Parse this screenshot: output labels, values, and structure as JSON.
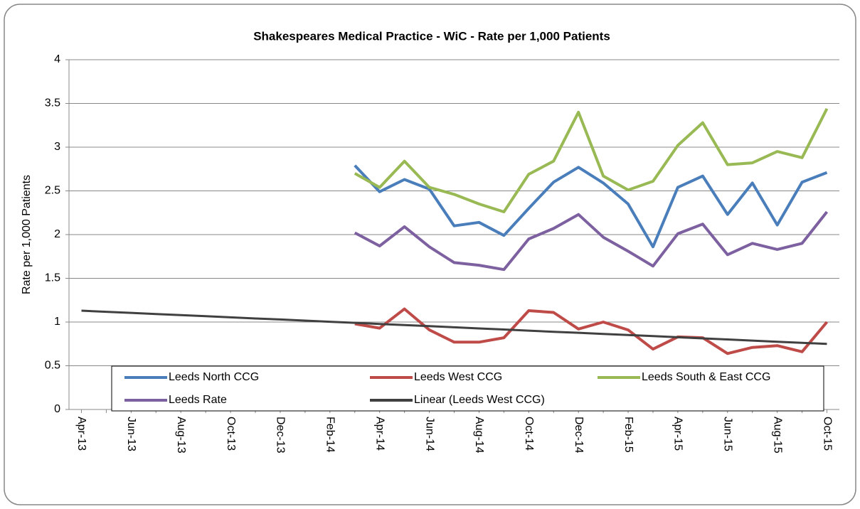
{
  "chart_data": {
    "type": "line",
    "title": "Shakespeares Medical Practice - WiC - Rate per 1,000 Patients",
    "y_label": "Rate per 1,000 Patients",
    "categories": [
      "Apr-13",
      null,
      "Jun-13",
      null,
      "Aug-13",
      null,
      "Oct-13",
      null,
      "Dec-13",
      null,
      "Feb-14",
      null,
      "Apr-14",
      null,
      "Jun-14",
      null,
      "Aug-14",
      null,
      "Oct-14",
      null,
      "Dec-14",
      null,
      "Feb-15",
      null,
      "Apr-15",
      null,
      "Jun-15",
      null,
      "Aug-15",
      null,
      "Oct-15"
    ],
    "series": [
      {
        "name": "Leeds North CCG",
        "color": "#4a7ebb",
        "values": [
          null,
          null,
          null,
          null,
          null,
          null,
          null,
          null,
          null,
          null,
          null,
          2.79,
          2.49,
          2.63,
          2.52,
          2.1,
          2.14,
          1.99,
          2.3,
          2.6,
          2.77,
          2.59,
          2.35,
          1.86,
          2.54,
          2.67,
          2.23,
          2.59,
          2.11,
          2.6,
          2.71
        ]
      },
      {
        "name": "Leeds West CCG",
        "color": "#be4b48",
        "values": [
          null,
          null,
          null,
          null,
          null,
          null,
          null,
          null,
          null,
          null,
          null,
          0.98,
          0.93,
          1.15,
          0.91,
          0.77,
          0.77,
          0.82,
          1.13,
          1.11,
          0.92,
          1.0,
          0.91,
          0.69,
          0.83,
          0.82,
          0.64,
          0.71,
          0.73,
          0.66,
          1.0
        ]
      },
      {
        "name": "Leeds South & East CCG",
        "color": "#98b954",
        "values": [
          null,
          null,
          null,
          null,
          null,
          null,
          null,
          null,
          null,
          null,
          null,
          2.7,
          2.54,
          2.84,
          2.54,
          2.46,
          2.35,
          2.26,
          2.69,
          2.84,
          3.4,
          2.67,
          2.51,
          2.61,
          3.02,
          3.28,
          2.8,
          2.82,
          2.95,
          2.88,
          3.44
        ]
      },
      {
        "name": "Leeds Rate",
        "color": "#7d60a0",
        "values": [
          null,
          null,
          null,
          null,
          null,
          null,
          null,
          null,
          null,
          null,
          null,
          2.02,
          1.87,
          2.09,
          1.86,
          1.68,
          1.65,
          1.6,
          1.95,
          2.07,
          2.23,
          1.97,
          1.81,
          1.64,
          2.01,
          2.12,
          1.77,
          1.9,
          1.83,
          1.9,
          2.26
        ]
      },
      {
        "name": "Linear (Leeds West CCG)",
        "color": "#404040",
        "values": [
          1.13,
          1.117,
          1.105,
          1.092,
          1.079,
          1.067,
          1.054,
          1.041,
          1.029,
          1.016,
          1.003,
          0.991,
          0.978,
          0.965,
          0.953,
          0.94,
          0.927,
          0.915,
          0.902,
          0.889,
          0.877,
          0.864,
          0.851,
          0.839,
          0.826,
          0.813,
          0.801,
          0.788,
          0.775,
          0.763,
          0.75
        ]
      }
    ],
    "ylim": [
      0,
      4
    ],
    "yticks": [
      0,
      0.5,
      1,
      1.5,
      2,
      2.5,
      3,
      3.5,
      4
    ],
    "grid": true
  }
}
